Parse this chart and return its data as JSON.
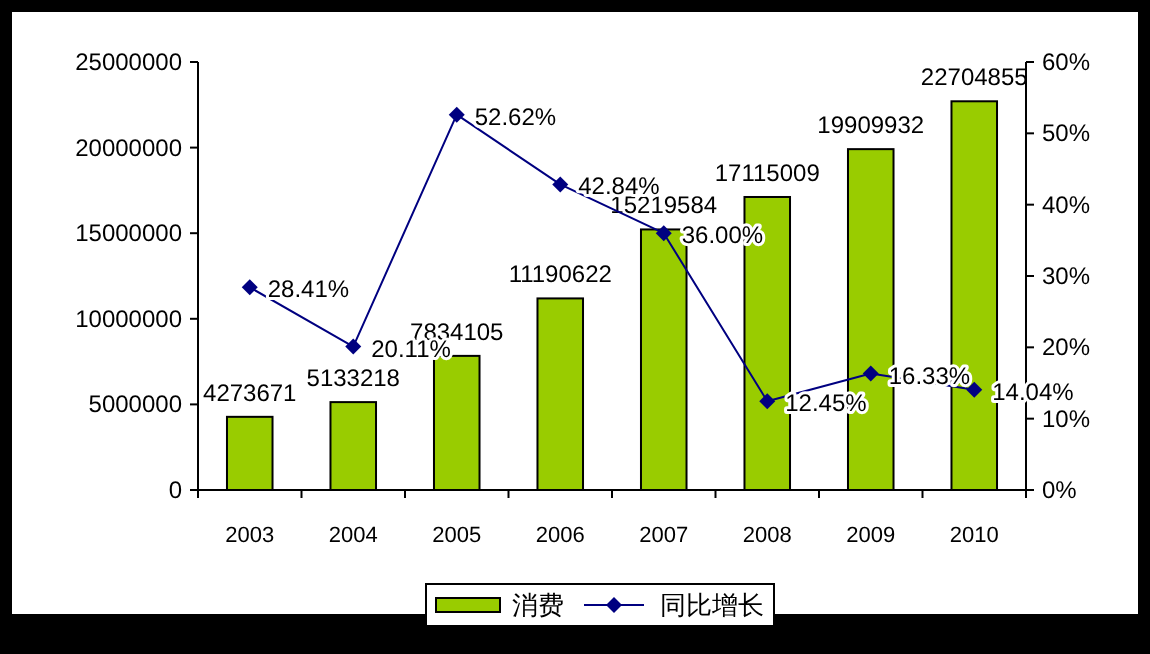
{
  "chart_data": {
    "type": "bar",
    "categories": [
      "2003",
      "2004",
      "2005",
      "2006",
      "2007",
      "2008",
      "2009",
      "2010"
    ],
    "series": [
      {
        "name": "消费",
        "color": "#99cc00",
        "values": [
          4273671,
          5133218,
          7834105,
          11190622,
          15219584,
          17115009,
          19909932,
          22704855
        ],
        "value_labels": [
          "4273671",
          "5133218",
          "7834105",
          "11190622",
          "15219584",
          "17115009",
          "19909932",
          "22704855"
        ]
      },
      {
        "name": "同比增长",
        "type": "line",
        "axis": "y2",
        "color": "#000080",
        "marker": "diamond",
        "values": [
          28.41,
          20.11,
          52.62,
          42.84,
          36.0,
          12.45,
          16.33,
          14.04
        ],
        "value_labels": [
          "28.41%",
          "20.11%",
          "52.62%",
          "42.84%",
          "36.00%",
          "12.45%",
          "16.33%",
          "14.04%"
        ]
      }
    ],
    "ylim": [
      0,
      25000000
    ],
    "yticks": [
      0,
      5000000,
      10000000,
      15000000,
      20000000,
      25000000
    ],
    "y2lim": [
      0,
      60
    ],
    "y2ticks": [
      {
        "value": 0,
        "label": "0%"
      },
      {
        "value": 10,
        "label": "10%"
      },
      {
        "value": 20,
        "label": "20%"
      },
      {
        "value": 30,
        "label": "30%"
      },
      {
        "value": 40,
        "label": "40%"
      },
      {
        "value": 50,
        "label": "50%"
      },
      {
        "value": 60,
        "label": "60%"
      }
    ],
    "grid": false,
    "legend": "bottom"
  }
}
